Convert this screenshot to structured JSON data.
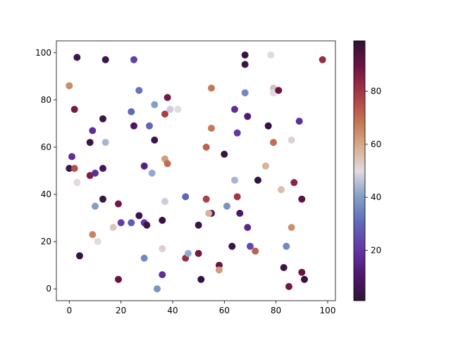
{
  "chart_data": {
    "type": "scatter",
    "title": "",
    "xlabel": "",
    "ylabel": "",
    "xlim": [
      -5,
      103
    ],
    "ylim": [
      -5,
      105
    ],
    "xticks": [
      0,
      20,
      40,
      60,
      80,
      100
    ],
    "yticks": [
      0,
      20,
      40,
      60,
      80,
      100
    ],
    "xtick_labels": [
      "0",
      "20",
      "40",
      "60",
      "80",
      "100"
    ],
    "ytick_labels": [
      "0",
      "20",
      "40",
      "60",
      "80",
      "100"
    ],
    "grid": false,
    "colormap": "twilight_shifted",
    "colorbar": {
      "range": [
        1,
        99
      ],
      "ticks": [
        20,
        40,
        60,
        80
      ],
      "tick_labels": [
        "20",
        "40",
        "60",
        "80"
      ]
    },
    "points": [
      {
        "x": 3,
        "y": 98,
        "c": 5
      },
      {
        "x": 14,
        "y": 97,
        "c": 4
      },
      {
        "x": 25,
        "y": 97,
        "c": 22
      },
      {
        "x": 68,
        "y": 99,
        "c": 3
      },
      {
        "x": 68,
        "y": 95,
        "c": 4
      },
      {
        "x": 78,
        "y": 99,
        "c": 50
      },
      {
        "x": 98,
        "y": 97,
        "c": 82
      },
      {
        "x": 0,
        "y": 86,
        "c": 65
      },
      {
        "x": 27,
        "y": 84,
        "c": 32
      },
      {
        "x": 38,
        "y": 81,
        "c": 88
      },
      {
        "x": 55,
        "y": 85,
        "c": 68
      },
      {
        "x": 68,
        "y": 83,
        "c": 36
      },
      {
        "x": 79,
        "y": 85,
        "c": 55
      },
      {
        "x": 79,
        "y": 83,
        "c": 50
      },
      {
        "x": 81,
        "y": 84,
        "c": 90
      },
      {
        "x": 2,
        "y": 76,
        "c": 88
      },
      {
        "x": 24,
        "y": 75,
        "c": 30
      },
      {
        "x": 33,
        "y": 78,
        "c": 40
      },
      {
        "x": 37,
        "y": 74,
        "c": 78
      },
      {
        "x": 39,
        "y": 76,
        "c": 48
      },
      {
        "x": 42,
        "y": 76,
        "c": 50
      },
      {
        "x": 13,
        "y": 72,
        "c": 4
      },
      {
        "x": 25,
        "y": 69,
        "c": 10
      },
      {
        "x": 31,
        "y": 69,
        "c": 30
      },
      {
        "x": 55,
        "y": 68,
        "c": 68
      },
      {
        "x": 64,
        "y": 76,
        "c": 18
      },
      {
        "x": 65,
        "y": 66,
        "c": 20
      },
      {
        "x": 69,
        "y": 73,
        "c": 12
      },
      {
        "x": 77,
        "y": 69,
        "c": 3
      },
      {
        "x": 89,
        "y": 71,
        "c": 18
      },
      {
        "x": 9,
        "y": 67,
        "c": 18
      },
      {
        "x": 8,
        "y": 62,
        "c": 4
      },
      {
        "x": 14,
        "y": 62,
        "c": 44
      },
      {
        "x": 33,
        "y": 63,
        "c": 5
      },
      {
        "x": 53,
        "y": 60,
        "c": 72
      },
      {
        "x": 60,
        "y": 57,
        "c": 3
      },
      {
        "x": 79,
        "y": 62,
        "c": 70
      },
      {
        "x": 86,
        "y": 63,
        "c": 52
      },
      {
        "x": 1,
        "y": 56,
        "c": 18
      },
      {
        "x": 0,
        "y": 51,
        "c": 4
      },
      {
        "x": 2,
        "y": 51,
        "c": 75
      },
      {
        "x": 3,
        "y": 45,
        "c": 50
      },
      {
        "x": 8,
        "y": 48,
        "c": 86
      },
      {
        "x": 10,
        "y": 49,
        "c": 18
      },
      {
        "x": 13,
        "y": 51,
        "c": 8
      },
      {
        "x": 29,
        "y": 52,
        "c": 14
      },
      {
        "x": 32,
        "y": 49,
        "c": 42
      },
      {
        "x": 37,
        "y": 55,
        "c": 62
      },
      {
        "x": 38,
        "y": 53,
        "c": 70
      },
      {
        "x": 64,
        "y": 46,
        "c": 44
      },
      {
        "x": 73,
        "y": 46,
        "c": 3
      },
      {
        "x": 76,
        "y": 52,
        "c": 58
      },
      {
        "x": 82,
        "y": 42,
        "c": 56
      },
      {
        "x": 87,
        "y": 45,
        "c": 84
      },
      {
        "x": 10,
        "y": 35,
        "c": 40
      },
      {
        "x": 13,
        "y": 38,
        "c": 4
      },
      {
        "x": 19,
        "y": 36,
        "c": 88
      },
      {
        "x": 37,
        "y": 37,
        "c": 48
      },
      {
        "x": 45,
        "y": 39,
        "c": 30
      },
      {
        "x": 53,
        "y": 38,
        "c": 78
      },
      {
        "x": 55,
        "y": 32,
        "c": 10
      },
      {
        "x": 54,
        "y": 32,
        "c": 58
      },
      {
        "x": 61,
        "y": 35,
        "c": 38
      },
      {
        "x": 65,
        "y": 39,
        "c": 80
      },
      {
        "x": 66,
        "y": 32,
        "c": 10
      },
      {
        "x": 90,
        "y": 38,
        "c": 92
      },
      {
        "x": 17,
        "y": 26,
        "c": 54
      },
      {
        "x": 20,
        "y": 28,
        "c": 22
      },
      {
        "x": 24,
        "y": 28,
        "c": 28
      },
      {
        "x": 27,
        "y": 31,
        "c": 4
      },
      {
        "x": 29,
        "y": 28,
        "c": 20
      },
      {
        "x": 30,
        "y": 27,
        "c": 4
      },
      {
        "x": 36,
        "y": 29,
        "c": 3
      },
      {
        "x": 50,
        "y": 27,
        "c": 4
      },
      {
        "x": 69,
        "y": 26,
        "c": 16
      },
      {
        "x": 86,
        "y": 26,
        "c": 64
      },
      {
        "x": 9,
        "y": 23,
        "c": 66
      },
      {
        "x": 11,
        "y": 20,
        "c": 50
      },
      {
        "x": 4,
        "y": 14,
        "c": 3
      },
      {
        "x": 29,
        "y": 13,
        "c": 36
      },
      {
        "x": 36,
        "y": 17,
        "c": 52
      },
      {
        "x": 45,
        "y": 13,
        "c": 82
      },
      {
        "x": 46,
        "y": 15,
        "c": 42
      },
      {
        "x": 50,
        "y": 15,
        "c": 88
      },
      {
        "x": 58,
        "y": 10,
        "c": 90
      },
      {
        "x": 63,
        "y": 18,
        "c": 4
      },
      {
        "x": 70,
        "y": 18,
        "c": 24
      },
      {
        "x": 72,
        "y": 16,
        "c": 72
      },
      {
        "x": 84,
        "y": 18,
        "c": 36
      },
      {
        "x": 83,
        "y": 9,
        "c": 4
      },
      {
        "x": 58,
        "y": 8,
        "c": 62
      },
      {
        "x": 19,
        "y": 4,
        "c": 90
      },
      {
        "x": 36,
        "y": 6,
        "c": 18
      },
      {
        "x": 34,
        "y": 0,
        "c": 38
      },
      {
        "x": 51,
        "y": 4,
        "c": 3
      },
      {
        "x": 85,
        "y": 1,
        "c": 88
      },
      {
        "x": 90,
        "y": 7,
        "c": 90
      },
      {
        "x": 91,
        "y": 4,
        "c": 3
      }
    ]
  }
}
